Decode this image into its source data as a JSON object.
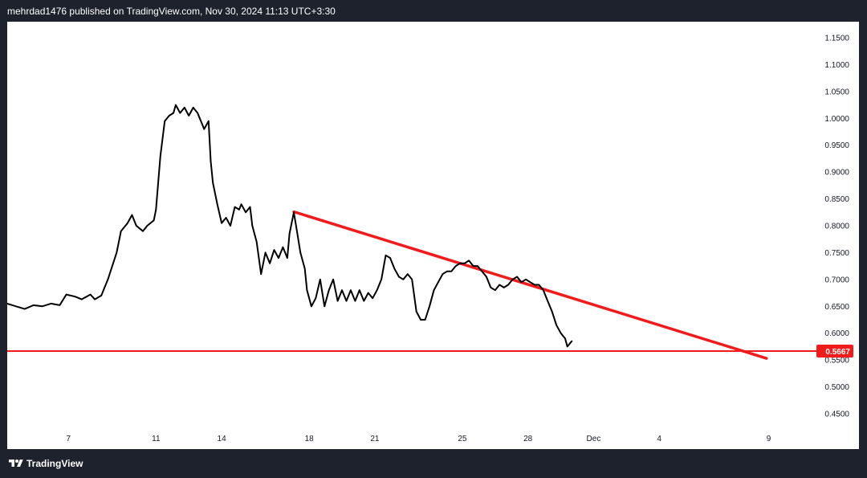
{
  "header": {
    "text": "mehrdad1476 published on TradingView.com, Nov 30, 2024 11:13 UTC+3:30"
  },
  "footer": {
    "brand": "TradingView"
  },
  "colors": {
    "background": "#1e222d",
    "plot": "#ffffff",
    "price_line": "#000000",
    "annotation": "#f21b1b"
  },
  "chart_data": {
    "type": "line",
    "title": "",
    "xlabel": "",
    "ylabel": "",
    "ylim": [
      0.42,
      1.18
    ],
    "y_ticks": [
      "1.1500",
      "1.1000",
      "1.0500",
      "1.0000",
      "0.9500",
      "0.9000",
      "0.8500",
      "0.8000",
      "0.7500",
      "0.7000",
      "0.6500",
      "0.6000",
      "0.5500",
      "0.5000",
      "0.4500"
    ],
    "x_ticks": [
      {
        "label": "7",
        "day": 7
      },
      {
        "label": "11",
        "day": 11
      },
      {
        "label": "14",
        "day": 14
      },
      {
        "label": "18",
        "day": 18
      },
      {
        "label": "21",
        "day": 21
      },
      {
        "label": "25",
        "day": 25
      },
      {
        "label": "28",
        "day": 28
      },
      {
        "label": "Dec",
        "day": 31
      },
      {
        "label": "4",
        "day": 34
      },
      {
        "label": "9",
        "day": 39
      }
    ],
    "xlim_days": [
      4.2,
      41.0
    ],
    "series": [
      {
        "points": [
          [
            4.2,
            0.655
          ],
          [
            4.6,
            0.65
          ],
          [
            5.0,
            0.645
          ],
          [
            5.4,
            0.652
          ],
          [
            5.8,
            0.65
          ],
          [
            6.2,
            0.655
          ],
          [
            6.6,
            0.652
          ],
          [
            6.9,
            0.672
          ],
          [
            7.3,
            0.668
          ],
          [
            7.6,
            0.663
          ],
          [
            8.0,
            0.672
          ],
          [
            8.2,
            0.663
          ],
          [
            8.5,
            0.67
          ],
          [
            8.8,
            0.7
          ],
          [
            9.2,
            0.75
          ],
          [
            9.4,
            0.79
          ],
          [
            9.7,
            0.805
          ],
          [
            9.9,
            0.82
          ],
          [
            10.1,
            0.8
          ],
          [
            10.4,
            0.79
          ],
          [
            10.6,
            0.8
          ],
          [
            10.9,
            0.81
          ],
          [
            11.0,
            0.83
          ],
          [
            11.2,
            0.93
          ],
          [
            11.4,
            0.995
          ],
          [
            11.6,
            1.005
          ],
          [
            11.8,
            1.01
          ],
          [
            11.9,
            1.025
          ],
          [
            12.1,
            1.01
          ],
          [
            12.3,
            1.02
          ],
          [
            12.5,
            1.005
          ],
          [
            12.7,
            1.02
          ],
          [
            12.9,
            1.01
          ],
          [
            13.1,
            0.99
          ],
          [
            13.2,
            0.98
          ],
          [
            13.4,
            0.995
          ],
          [
            13.5,
            0.92
          ],
          [
            13.6,
            0.88
          ],
          [
            13.8,
            0.84
          ],
          [
            14.0,
            0.805
          ],
          [
            14.2,
            0.815
          ],
          [
            14.4,
            0.8
          ],
          [
            14.6,
            0.835
          ],
          [
            14.8,
            0.83
          ],
          [
            14.9,
            0.84
          ],
          [
            15.1,
            0.825
          ],
          [
            15.3,
            0.835
          ],
          [
            15.4,
            0.8
          ],
          [
            15.6,
            0.77
          ],
          [
            15.8,
            0.71
          ],
          [
            16.0,
            0.75
          ],
          [
            16.2,
            0.73
          ],
          [
            16.4,
            0.755
          ],
          [
            16.6,
            0.74
          ],
          [
            16.8,
            0.76
          ],
          [
            17.0,
            0.74
          ],
          [
            17.1,
            0.785
          ],
          [
            17.3,
            0.825
          ],
          [
            17.4,
            0.8
          ],
          [
            17.6,
            0.75
          ],
          [
            17.8,
            0.72
          ],
          [
            17.9,
            0.68
          ],
          [
            18.1,
            0.65
          ],
          [
            18.3,
            0.665
          ],
          [
            18.5,
            0.7
          ],
          [
            18.7,
            0.65
          ],
          [
            18.9,
            0.68
          ],
          [
            19.1,
            0.7
          ],
          [
            19.3,
            0.66
          ],
          [
            19.5,
            0.68
          ],
          [
            19.7,
            0.66
          ],
          [
            19.9,
            0.68
          ],
          [
            20.1,
            0.66
          ],
          [
            20.3,
            0.68
          ],
          [
            20.5,
            0.66
          ],
          [
            20.7,
            0.675
          ],
          [
            20.9,
            0.665
          ],
          [
            21.1,
            0.68
          ],
          [
            21.3,
            0.7
          ],
          [
            21.5,
            0.745
          ],
          [
            21.7,
            0.74
          ],
          [
            21.9,
            0.72
          ],
          [
            22.1,
            0.705
          ],
          [
            22.3,
            0.7
          ],
          [
            22.5,
            0.71
          ],
          [
            22.7,
            0.7
          ],
          [
            22.9,
            0.64
          ],
          [
            23.1,
            0.625
          ],
          [
            23.3,
            0.625
          ],
          [
            23.5,
            0.65
          ],
          [
            23.7,
            0.68
          ],
          [
            23.9,
            0.695
          ],
          [
            24.1,
            0.71
          ],
          [
            24.3,
            0.715
          ],
          [
            24.5,
            0.715
          ],
          [
            24.7,
            0.725
          ],
          [
            24.9,
            0.73
          ],
          [
            25.1,
            0.73
          ],
          [
            25.3,
            0.735
          ],
          [
            25.5,
            0.725
          ],
          [
            25.7,
            0.725
          ],
          [
            25.9,
            0.715
          ],
          [
            26.1,
            0.705
          ],
          [
            26.3,
            0.685
          ],
          [
            26.5,
            0.68
          ],
          [
            26.7,
            0.69
          ],
          [
            26.9,
            0.685
          ],
          [
            27.1,
            0.69
          ],
          [
            27.3,
            0.7
          ],
          [
            27.5,
            0.705
          ],
          [
            27.7,
            0.695
          ],
          [
            27.9,
            0.7
          ],
          [
            28.1,
            0.695
          ],
          [
            28.3,
            0.69
          ],
          [
            28.5,
            0.69
          ],
          [
            28.7,
            0.68
          ],
          [
            28.9,
            0.66
          ],
          [
            29.1,
            0.64
          ],
          [
            29.3,
            0.615
          ],
          [
            29.5,
            0.6
          ],
          [
            29.7,
            0.59
          ],
          [
            29.8,
            0.575
          ],
          [
            30.0,
            0.585
          ]
        ]
      }
    ],
    "annotations": {
      "trendline": [
        [
          17.3,
          0.826
        ],
        [
          38.9,
          0.553
        ]
      ],
      "horizontal_level": 0.5667,
      "level_label": "0.5667"
    }
  }
}
